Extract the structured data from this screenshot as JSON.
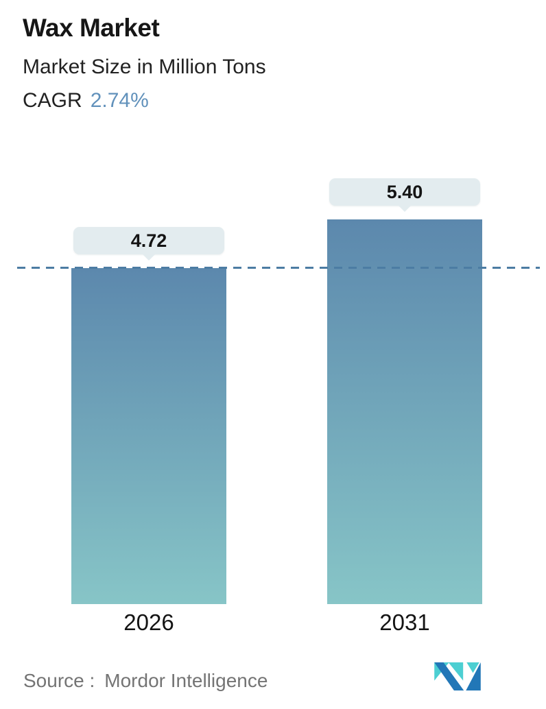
{
  "header": {
    "title": "Wax Market",
    "subtitle": "Market Size in Million Tons",
    "cagr_label": "CAGR",
    "cagr_value": "2.74%"
  },
  "chart_data": {
    "type": "bar",
    "title": "Wax Market",
    "subtitle": "Market Size in Million Tons",
    "unit": "Million Tons",
    "cagr_percent": "2.74%",
    "categories": [
      "2026",
      "2031"
    ],
    "values": [
      4.72,
      5.4
    ],
    "value_labels": [
      "4.72",
      "5.40"
    ],
    "ylim": [
      0,
      5.6
    ],
    "grid": false,
    "legend": "none",
    "reference_line": {
      "value": 4.72,
      "style": "dashed",
      "color": "#4c7ca3"
    },
    "bar_gradient_top": "#5c88ad",
    "bar_gradient_bottom": "#87c5c7",
    "label_pill_color": "#e3ecef"
  },
  "footer": {
    "source_label": "Source :",
    "source_value": "Mordor Intelligence"
  },
  "colors": {
    "cagr_accent": "#6191bb",
    "dashed_line": "#4c7ca3",
    "text_dark": "#161616",
    "text_gray": "#747474",
    "logo_blue": "#2277b7",
    "logo_teal": "#4ccfd2"
  }
}
